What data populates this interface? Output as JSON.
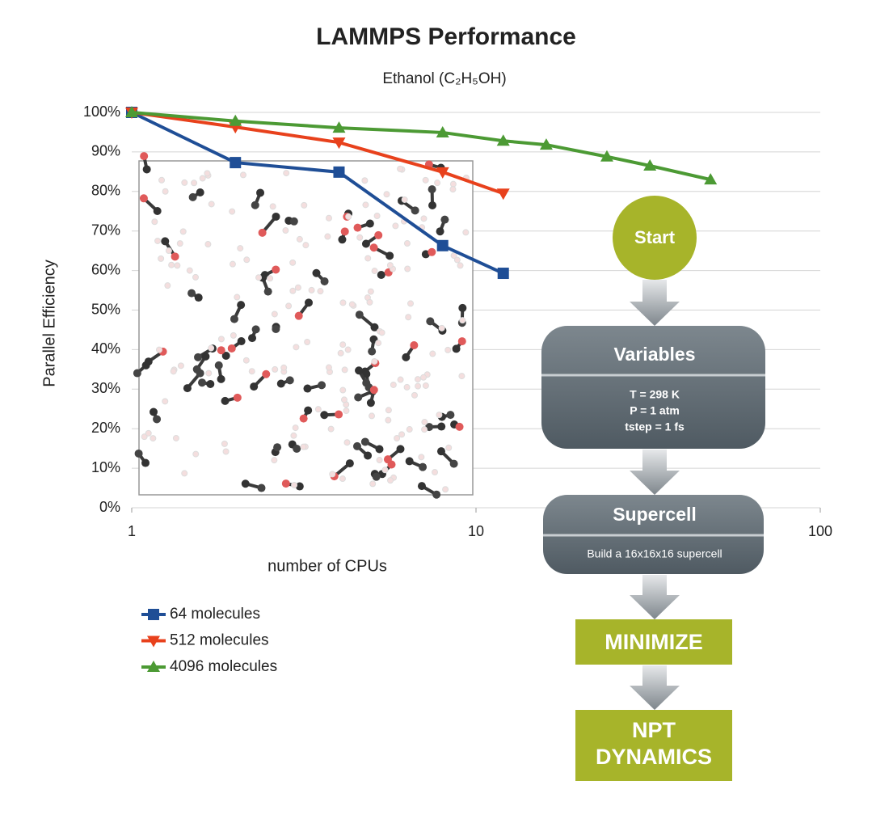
{
  "chart_data": {
    "type": "line",
    "title": "LAMMPS Performance",
    "subtitle": "Ethanol (C₂H₅OH)",
    "xlabel": "number of CPUs",
    "ylabel": "Parallel Efficiency",
    "xscale": "log",
    "xlim": [
      1,
      100
    ],
    "xticks": [
      1,
      10,
      100
    ],
    "ylim": [
      0,
      100
    ],
    "yticks": [
      {
        "value": 0,
        "label": "0%"
      },
      {
        "value": 10,
        "label": "10%"
      },
      {
        "value": 20,
        "label": "20%"
      },
      {
        "value": 30,
        "label": "30%"
      },
      {
        "value": 40,
        "label": "40%"
      },
      {
        "value": 50,
        "label": "50%"
      },
      {
        "value": 60,
        "label": "60%"
      },
      {
        "value": 70,
        "label": "70%"
      },
      {
        "value": 80,
        "label": "80%"
      },
      {
        "value": 90,
        "label": "90%"
      },
      {
        "value": 100,
        "label": "100%"
      }
    ],
    "grid": true,
    "legend": "lower left",
    "series": [
      {
        "name": "64 molecules",
        "color": "#1f4e96",
        "marker": "square",
        "x": [
          1,
          2,
          4,
          8,
          12
        ],
        "values": [
          100,
          87.3,
          84.9,
          66.3,
          59.3
        ]
      },
      {
        "name": "512 molecules",
        "color": "#e8411c",
        "marker": "triangle-down",
        "x": [
          1,
          2,
          4,
          8,
          12
        ],
        "values": [
          100,
          96.3,
          92.4,
          84.9,
          79.5
        ]
      },
      {
        "name": "4096 molecules",
        "color": "#4c9a34",
        "marker": "triangle-up",
        "x": [
          1,
          2,
          4,
          8,
          12,
          16,
          24,
          32,
          48
        ],
        "values": [
          100,
          97.8,
          96.1,
          94.9,
          92.8,
          91.8,
          88.8,
          86.5,
          83
        ]
      }
    ]
  },
  "flowchart": {
    "start": "Start",
    "variables": {
      "title": "Variables",
      "lines": [
        "T = 298 K",
        "P = 1 atm",
        "tstep = 1 fs"
      ]
    },
    "supercell": {
      "title": "Supercell",
      "lines": [
        "Build a 16x16x16 supercell"
      ]
    },
    "minimize": "MINIMIZE",
    "dynamics": [
      "NPT",
      "DYNAMICS"
    ]
  }
}
